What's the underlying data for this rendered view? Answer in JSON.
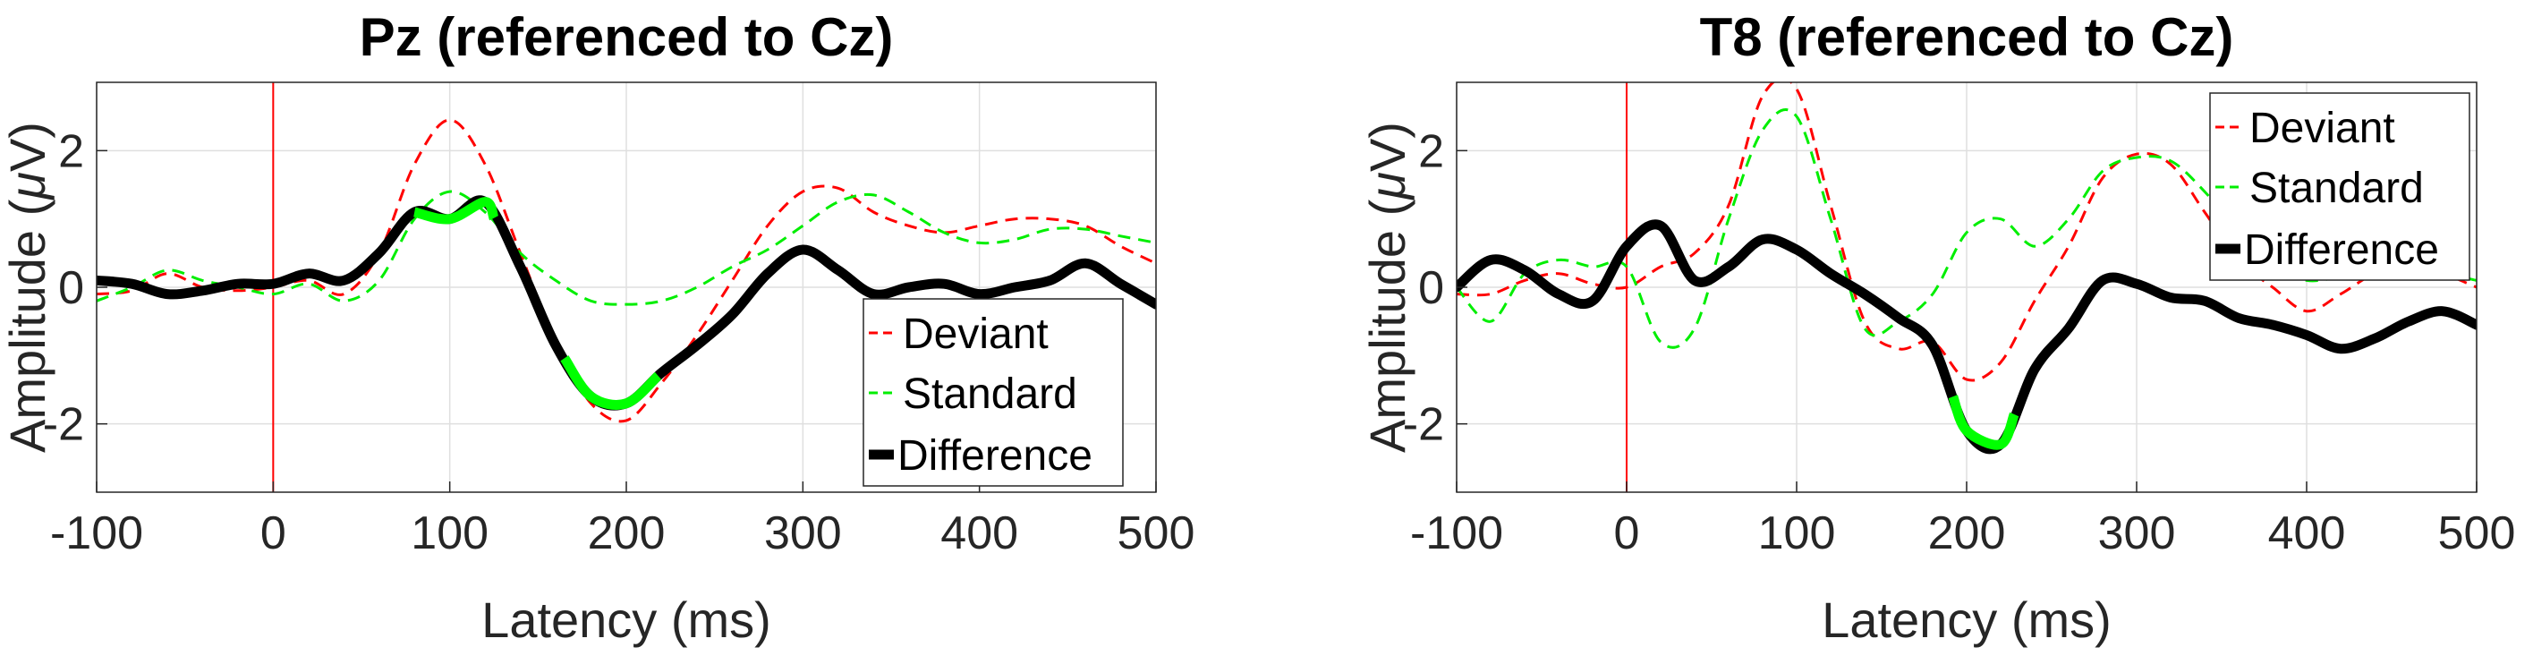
{
  "chart_data": [
    {
      "type": "line",
      "title": "Pz (referenced to Cz)",
      "xlabel": "Latency (ms)",
      "ylabel": "Amplitude (μV)",
      "ylabel_prefix": "Amplitude (",
      "ylabel_unit": "μ",
      "ylabel_suffix": "V)",
      "xlim": [
        -100,
        500
      ],
      "ylim": [
        -3,
        3
      ],
      "xticks": [
        -100,
        0,
        100,
        200,
        300,
        400,
        500
      ],
      "xtick_labels": [
        "-100",
        "0",
        "100",
        "200",
        "300",
        "400",
        "500"
      ],
      "yticks": [
        -2,
        0,
        2
      ],
      "ytick_labels": [
        "-2",
        "0",
        "2"
      ],
      "grid": true,
      "stimulus_onset": 0,
      "legend_position": "lower-right",
      "series": [
        {
          "name": "Deviant",
          "style": "dashed",
          "color": "#ff0000",
          "x": [
            -100,
            -80,
            -60,
            -40,
            -20,
            0,
            20,
            40,
            60,
            80,
            100,
            120,
            140,
            160,
            180,
            200,
            220,
            240,
            260,
            280,
            300,
            320,
            340,
            360,
            380,
            400,
            420,
            440,
            460,
            480,
            500
          ],
          "values": [
            -0.1,
            -0.05,
            0.2,
            0.0,
            -0.05,
            0.0,
            0.1,
            -0.1,
            0.5,
            1.8,
            2.45,
            1.8,
            0.5,
            -0.8,
            -1.7,
            -1.95,
            -1.4,
            -0.7,
            0.1,
            0.9,
            1.4,
            1.45,
            1.1,
            0.9,
            0.8,
            0.9,
            1.0,
            1.0,
            0.9,
            0.6,
            0.35
          ]
        },
        {
          "name": "Standard",
          "style": "dashed",
          "color": "#00ee00",
          "x": [
            -100,
            -80,
            -60,
            -40,
            -20,
            0,
            20,
            40,
            60,
            80,
            100,
            120,
            140,
            160,
            180,
            200,
            220,
            240,
            260,
            280,
            300,
            320,
            340,
            360,
            380,
            400,
            420,
            440,
            460,
            480,
            500
          ],
          "values": [
            -0.2,
            0.0,
            0.25,
            0.1,
            0.0,
            -0.1,
            0.05,
            -0.2,
            0.1,
            1.0,
            1.4,
            1.1,
            0.5,
            0.1,
            -0.2,
            -0.25,
            -0.2,
            0.0,
            0.3,
            0.55,
            0.9,
            1.25,
            1.35,
            1.1,
            0.8,
            0.65,
            0.7,
            0.85,
            0.85,
            0.75,
            0.65
          ]
        },
        {
          "name": "Difference",
          "style": "solid",
          "color": "#000000",
          "x": [
            -100,
            -80,
            -60,
            -40,
            -20,
            0,
            20,
            40,
            60,
            80,
            100,
            120,
            140,
            160,
            180,
            200,
            220,
            240,
            260,
            280,
            300,
            320,
            340,
            360,
            380,
            400,
            420,
            440,
            460,
            480,
            500
          ],
          "values": [
            0.1,
            0.05,
            -0.1,
            -0.05,
            0.05,
            0.05,
            0.2,
            0.1,
            0.5,
            1.1,
            1.0,
            1.25,
            0.3,
            -0.85,
            -1.6,
            -1.7,
            -1.25,
            -0.85,
            -0.4,
            0.2,
            0.55,
            0.25,
            -0.1,
            0.0,
            0.05,
            -0.1,
            0.0,
            0.1,
            0.35,
            0.05,
            -0.25
          ]
        }
      ],
      "significant_windows": [
        [
          80,
          125
        ],
        [
          165,
          218
        ]
      ]
    },
    {
      "type": "line",
      "title": "T8 (referenced to Cz)",
      "xlabel": "Latency (ms)",
      "ylabel": "Amplitude (μV)",
      "ylabel_prefix": "Amplitude (",
      "ylabel_unit": "μ",
      "ylabel_suffix": "V)",
      "xlim": [
        -100,
        500
      ],
      "ylim": [
        -3,
        3
      ],
      "xticks": [
        -100,
        0,
        100,
        200,
        300,
        400,
        500
      ],
      "xtick_labels": [
        "-100",
        "0",
        "100",
        "200",
        "300",
        "400",
        "500"
      ],
      "yticks": [
        -2,
        0,
        2
      ],
      "ytick_labels": [
        "-2",
        "0",
        "2"
      ],
      "grid": true,
      "stimulus_onset": 0,
      "legend_position": "top-right",
      "series": [
        {
          "name": "Deviant",
          "style": "dashed",
          "color": "#ff0000",
          "x": [
            -100,
            -80,
            -60,
            -40,
            -20,
            0,
            20,
            40,
            60,
            80,
            100,
            120,
            140,
            160,
            180,
            200,
            220,
            240,
            260,
            280,
            300,
            320,
            340,
            360,
            380,
            400,
            420,
            440,
            460,
            480,
            500
          ],
          "values": [
            -0.1,
            -0.1,
            0.1,
            0.2,
            0.05,
            0.0,
            0.3,
            0.5,
            1.2,
            2.8,
            2.9,
            1.2,
            -0.5,
            -0.9,
            -0.8,
            -1.35,
            -1.1,
            -0.2,
            0.6,
            1.6,
            1.95,
            1.8,
            1.1,
            0.4,
            0.0,
            -0.35,
            -0.1,
            0.2,
            0.3,
            0.2,
            0.0
          ]
        },
        {
          "name": "Standard",
          "style": "dashed",
          "color": "#00ee00",
          "x": [
            -100,
            -80,
            -60,
            -40,
            -20,
            0,
            20,
            40,
            60,
            80,
            100,
            120,
            140,
            160,
            180,
            200,
            220,
            240,
            260,
            280,
            300,
            320,
            340,
            360,
            380,
            400,
            420,
            440,
            460,
            480,
            500
          ],
          "values": [
            0.0,
            -0.5,
            0.2,
            0.4,
            0.3,
            0.3,
            -0.8,
            -0.6,
            1.0,
            2.3,
            2.5,
            1.0,
            -0.6,
            -0.5,
            -0.1,
            0.8,
            1.0,
            0.6,
            1.0,
            1.7,
            1.9,
            1.85,
            1.4,
            0.8,
            0.3,
            0.1,
            0.15,
            0.2,
            0.2,
            0.2,
            0.1
          ]
        },
        {
          "name": "Difference",
          "style": "solid",
          "color": "#000000",
          "x": [
            -100,
            -80,
            -60,
            -40,
            -20,
            0,
            20,
            40,
            60,
            80,
            100,
            120,
            140,
            160,
            180,
            200,
            220,
            240,
            260,
            280,
            300,
            320,
            340,
            360,
            380,
            400,
            420,
            440,
            460,
            480,
            500
          ],
          "values": [
            0.0,
            0.4,
            0.25,
            -0.1,
            -0.2,
            0.6,
            0.9,
            0.1,
            0.3,
            0.7,
            0.55,
            0.2,
            -0.1,
            -0.45,
            -0.85,
            -2.1,
            -2.3,
            -1.2,
            -0.6,
            0.1,
            0.05,
            -0.15,
            -0.2,
            -0.45,
            -0.55,
            -0.7,
            -0.9,
            -0.75,
            -0.5,
            -0.35,
            -0.55
          ]
        }
      ],
      "significant_windows": [
        [
          192,
          228
        ]
      ]
    }
  ]
}
